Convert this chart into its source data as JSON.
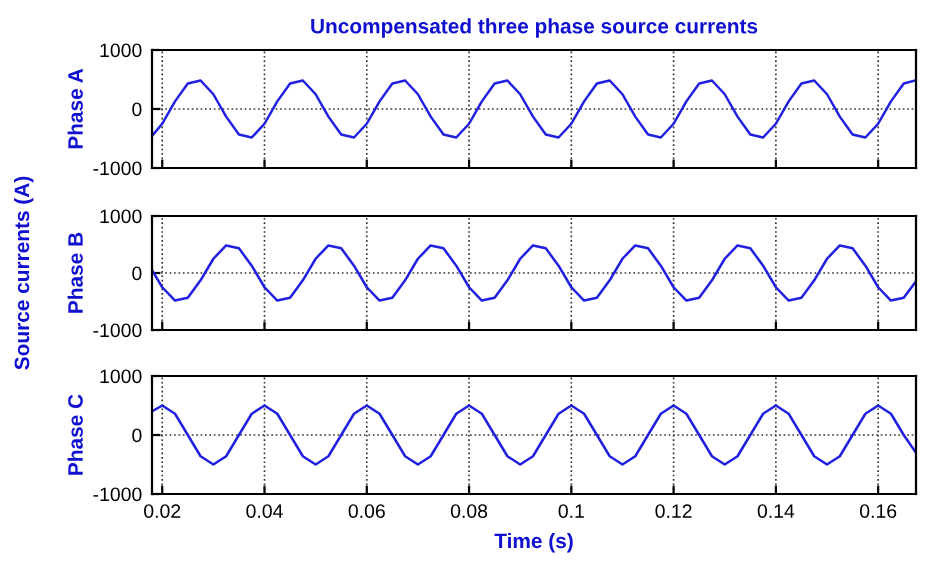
{
  "chart_data": [
    {
      "type": "line",
      "title": "Uncompensated three phase source currents",
      "ylabel": "Phase A",
      "x": [
        0.018,
        0.02,
        0.0225,
        0.025,
        0.0275,
        0.03,
        0.0325,
        0.035,
        0.0375,
        0.04,
        0.0425,
        0.045,
        0.0475,
        0.05,
        0.0525,
        0.055,
        0.0575,
        0.06,
        0.0625,
        0.065,
        0.0675,
        0.07,
        0.0725,
        0.075,
        0.0775,
        0.08,
        0.0825,
        0.085,
        0.0875,
        0.09,
        0.0925,
        0.095,
        0.0975,
        0.1,
        0.1025,
        0.105,
        0.1075,
        0.11,
        0.1125,
        0.115,
        0.1175,
        0.12,
        0.1225,
        0.125,
        0.1275,
        0.13,
        0.1325,
        0.135,
        0.1375,
        0.14,
        0.1425,
        0.145,
        0.1475,
        0.15,
        0.1525,
        0.155,
        0.1575,
        0.16,
        0.1625,
        0.165,
        0.1674
      ],
      "series": [
        {
          "color": "#2020e0",
          "values": [
            -457,
            -250,
            129,
            433,
            483,
            250,
            -129,
            -433,
            -483,
            -250,
            129,
            433,
            483,
            250,
            -129,
            -433,
            -483,
            -250,
            129,
            433,
            483,
            250,
            -129,
            -433,
            -483,
            -250,
            129,
            433,
            483,
            250,
            -129,
            -433,
            -483,
            -250,
            129,
            433,
            483,
            250,
            -129,
            -433,
            -483,
            -250,
            129,
            433,
            483,
            250,
            -129,
            -433,
            -483,
            -250,
            129,
            433,
            483,
            250,
            -129,
            -433,
            -483,
            -250,
            129,
            433,
            487
          ]
        }
      ],
      "xlim": [
        0.018,
        0.1674
      ],
      "ylim": [
        -1000,
        1000
      ],
      "yticks": [
        -1000,
        0,
        1000
      ],
      "xticks": [
        0.02,
        0.04,
        0.06,
        0.08,
        0.1,
        0.12,
        0.14,
        0.16
      ],
      "grid": true,
      "line_style": "solid",
      "tick_labels": "y"
    },
    {
      "type": "line",
      "ylabel": "Phase B",
      "annotations": [
        "Source currents (A)"
      ],
      "x": [
        0.018,
        0.02,
        0.0225,
        0.025,
        0.0275,
        0.03,
        0.0325,
        0.035,
        0.0375,
        0.04,
        0.0425,
        0.045,
        0.0475,
        0.05,
        0.0525,
        0.055,
        0.0575,
        0.06,
        0.0625,
        0.065,
        0.0675,
        0.07,
        0.0725,
        0.075,
        0.0775,
        0.08,
        0.0825,
        0.085,
        0.0875,
        0.09,
        0.0925,
        0.095,
        0.0975,
        0.1,
        0.1025,
        0.105,
        0.1075,
        0.11,
        0.1125,
        0.115,
        0.1175,
        0.12,
        0.1225,
        0.125,
        0.1275,
        0.13,
        0.1325,
        0.135,
        0.1375,
        0.14,
        0.1425,
        0.145,
        0.1475,
        0.15,
        0.1525,
        0.155,
        0.1575,
        0.16,
        0.1625,
        0.165,
        0.1674
      ],
      "series": [
        {
          "color": "#2020e0",
          "values": [
            52,
            -250,
            -483,
            -433,
            -129,
            250,
            483,
            433,
            129,
            -250,
            -483,
            -433,
            -129,
            250,
            483,
            433,
            129,
            -250,
            -483,
            -433,
            -129,
            250,
            483,
            433,
            129,
            -250,
            -483,
            -433,
            -129,
            250,
            483,
            433,
            129,
            -250,
            -483,
            -433,
            -129,
            250,
            483,
            433,
            129,
            -250,
            -483,
            -433,
            -129,
            250,
            483,
            433,
            129,
            -250,
            -483,
            -433,
            -129,
            250,
            483,
            433,
            129,
            -250,
            -483,
            -433,
            -146
          ]
        }
      ],
      "xlim": [
        0.018,
        0.1674
      ],
      "ylim": [
        -1000,
        1000
      ],
      "yticks": [
        -1000,
        0,
        1000
      ],
      "xticks": [
        0.02,
        0.04,
        0.06,
        0.08,
        0.1,
        0.12,
        0.14,
        0.16
      ],
      "grid": true,
      "line_style": "solid",
      "tick_labels": "y"
    },
    {
      "type": "line",
      "ylabel": "Phase C",
      "xlabel": "Time (s)",
      "x": [
        0.018,
        0.02,
        0.0225,
        0.025,
        0.0275,
        0.03,
        0.0325,
        0.035,
        0.0375,
        0.04,
        0.0425,
        0.045,
        0.0475,
        0.05,
        0.0525,
        0.055,
        0.0575,
        0.06,
        0.0625,
        0.065,
        0.0675,
        0.07,
        0.0725,
        0.075,
        0.0775,
        0.08,
        0.0825,
        0.085,
        0.0875,
        0.09,
        0.0925,
        0.095,
        0.0975,
        0.1,
        0.1025,
        0.105,
        0.1075,
        0.11,
        0.1125,
        0.115,
        0.1175,
        0.12,
        0.1225,
        0.125,
        0.1275,
        0.13,
        0.1325,
        0.135,
        0.1375,
        0.14,
        0.1425,
        0.145,
        0.1475,
        0.15,
        0.1525,
        0.155,
        0.1575,
        0.16,
        0.1625,
        0.165,
        0.1674
      ],
      "series": [
        {
          "color": "#2020e0",
          "values": [
            400,
            500,
            360,
            0,
            -360,
            -500,
            -360,
            0,
            360,
            500,
            360,
            0,
            -360,
            -500,
            -360,
            0,
            360,
            500,
            360,
            0,
            -360,
            -500,
            -360,
            0,
            360,
            500,
            360,
            0,
            -360,
            -500,
            -360,
            0,
            360,
            500,
            360,
            0,
            -360,
            -500,
            -360,
            0,
            360,
            500,
            360,
            0,
            -360,
            -500,
            -360,
            0,
            360,
            500,
            360,
            0,
            -360,
            -500,
            -360,
            0,
            360,
            500,
            360,
            0,
            -300
          ]
        }
      ],
      "xlim": [
        0.018,
        0.1674
      ],
      "ylim": [
        -1000,
        1000
      ],
      "yticks": [
        -1000,
        0,
        1000
      ],
      "xticks": [
        0.02,
        0.04,
        0.06,
        0.08,
        0.1,
        0.12,
        0.14,
        0.16
      ],
      "grid": true,
      "line_style": "solid"
    }
  ]
}
